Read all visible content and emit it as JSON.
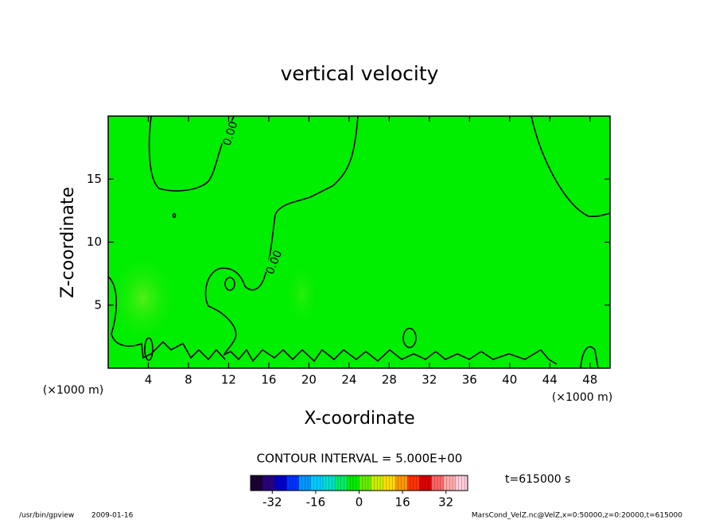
{
  "chart_data": {
    "type": "contour",
    "title": "vertical velocity",
    "x_label": "X-coordinate",
    "y_label": "Z-coordinate",
    "x_unit": "(×1000 m)",
    "y_unit": "(×1000 m)",
    "xlim": [
      0,
      50
    ],
    "xticks": [
      4,
      8,
      12,
      16,
      20,
      24,
      28,
      32,
      36,
      40,
      44,
      48
    ],
    "ylim": [
      0,
      20
    ],
    "yticks": [
      5,
      10,
      15
    ],
    "fill_color": "#00ee00",
    "contour_labels": [
      "0.00",
      "0.00"
    ],
    "contour_interval_label": "CONTOUR INTERVAL = 5.000E+00",
    "time_label": "t=615000 s",
    "colorbar": {
      "lim": [
        -40,
        40
      ],
      "ticks": [
        -32,
        -16,
        0,
        16,
        32
      ],
      "colors": [
        "#1a0033",
        "#2a0080",
        "#0000cc",
        "#0033ff",
        "#0099ff",
        "#00ccff",
        "#00e0cc",
        "#00ee66",
        "#00ee00",
        "#66ee00",
        "#ccee00",
        "#ffdd00",
        "#ff9900",
        "#ff3300",
        "#dd0000",
        "#ff6666",
        "#ffaaaa",
        "#ffccdd"
      ]
    }
  },
  "footer": {
    "program": "/usr/bin/gpview",
    "date": "2009-01-16",
    "source": "MarsCond_VelZ.nc@VelZ,x=0:50000,z=0:20000,t=615000"
  }
}
